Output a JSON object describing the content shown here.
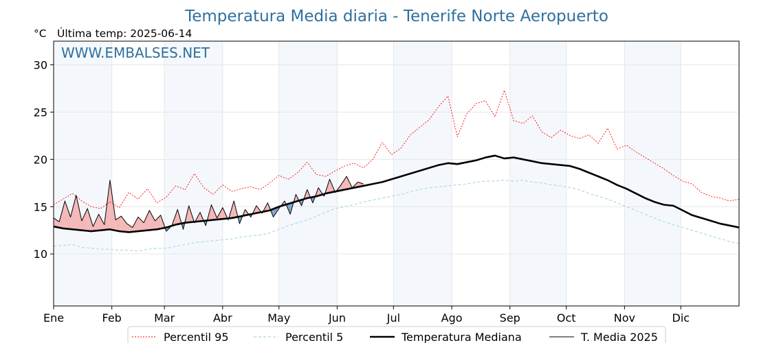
{
  "chart_data": {
    "type": "line",
    "title": "Temperatura Media diaria - Tenerife Norte Aeropuerto",
    "unit_label": "°C",
    "last_temp_label": "Última temp: 2025-06-14",
    "watermark": "WWW.EMBALSES.NET",
    "ylim": [
      4.5,
      32.5
    ],
    "yticks": [
      10,
      15,
      20,
      25,
      30
    ],
    "xlim": [
      0,
      365
    ],
    "x_unit": "day of year",
    "months": [
      {
        "label": "Ene",
        "start": 0
      },
      {
        "label": "Feb",
        "start": 31
      },
      {
        "label": "Mar",
        "start": 59
      },
      {
        "label": "Abr",
        "start": 90
      },
      {
        "label": "May",
        "start": 120
      },
      {
        "label": "Jun",
        "start": 151
      },
      {
        "label": "Jul",
        "start": 181
      },
      {
        "label": "Ago",
        "start": 212
      },
      {
        "label": "Sep",
        "start": 243
      },
      {
        "label": "Oct",
        "start": 273
      },
      {
        "label": "Nov",
        "start": 304
      },
      {
        "label": "Dic",
        "start": 334
      }
    ],
    "shaded_months": [
      "Ene",
      "Mar",
      "May",
      "Jul",
      "Sep",
      "Nov"
    ],
    "grid": true,
    "legend_position": "bottom-center",
    "colors": {
      "p95": "#ff0000",
      "p5": "#add8e6",
      "median": "#000000",
      "current": "#000000",
      "above_fill": "#f4b8b8",
      "below_fill": "#7fa6c9",
      "month_band": "#f4f8fc",
      "title": "#2e6f9e"
    },
    "series": [
      {
        "key": "p95",
        "name": "Percentil 95",
        "style": "dotted-red",
        "x": [
          0,
          5,
          10,
          15,
          20,
          25,
          30,
          35,
          40,
          45,
          50,
          55,
          60,
          65,
          70,
          75,
          80,
          85,
          90,
          95,
          100,
          105,
          110,
          115,
          120,
          125,
          130,
          135,
          140,
          145,
          150,
          155,
          160,
          165,
          170,
          175,
          180,
          185,
          190,
          195,
          200,
          205,
          210,
          215,
          220,
          225,
          230,
          235,
          240,
          245,
          250,
          255,
          260,
          265,
          270,
          275,
          280,
          285,
          290,
          295,
          300,
          305,
          310,
          315,
          320,
          325,
          330,
          335,
          340,
          345,
          350,
          355,
          360,
          365
        ],
        "values": [
          15.2,
          15.8,
          16.4,
          15.6,
          15.0,
          14.8,
          15.5,
          14.9,
          16.5,
          15.8,
          16.9,
          15.4,
          16.0,
          17.2,
          16.8,
          18.5,
          17.0,
          16.3,
          17.3,
          16.6,
          16.9,
          17.1,
          16.8,
          17.5,
          18.3,
          17.9,
          18.6,
          19.7,
          18.4,
          18.2,
          18.8,
          19.3,
          19.6,
          19.1,
          20.0,
          21.8,
          20.5,
          21.2,
          22.6,
          23.4,
          24.2,
          25.6,
          26.7,
          22.4,
          24.8,
          25.9,
          26.2,
          24.5,
          27.3,
          24.1,
          23.8,
          24.6,
          22.9,
          22.3,
          23.1,
          22.5,
          22.2,
          22.6,
          21.7,
          23.3,
          21.1,
          21.5,
          20.8,
          20.2,
          19.6,
          19.0,
          18.3,
          17.7,
          17.4,
          16.5,
          16.1,
          15.9,
          15.6,
          15.8
        ]
      },
      {
        "key": "p5",
        "name": "Percentil 5",
        "style": "dashed-lightblue",
        "x": [
          0,
          5,
          10,
          15,
          20,
          25,
          30,
          35,
          40,
          45,
          50,
          55,
          60,
          65,
          70,
          75,
          80,
          85,
          90,
          95,
          100,
          105,
          110,
          115,
          120,
          125,
          130,
          135,
          140,
          145,
          150,
          155,
          160,
          165,
          170,
          175,
          180,
          185,
          190,
          195,
          200,
          205,
          210,
          215,
          220,
          225,
          230,
          235,
          240,
          245,
          250,
          255,
          260,
          265,
          270,
          275,
          280,
          285,
          290,
          295,
          300,
          305,
          310,
          315,
          320,
          325,
          330,
          335,
          340,
          345,
          350,
          355,
          360,
          365
        ],
        "values": [
          10.8,
          10.9,
          11.0,
          10.7,
          10.6,
          10.5,
          10.5,
          10.4,
          10.4,
          10.3,
          10.5,
          10.6,
          10.6,
          10.8,
          11.0,
          11.2,
          11.3,
          11.4,
          11.5,
          11.6,
          11.8,
          11.9,
          12.0,
          12.2,
          12.6,
          13.0,
          13.3,
          13.6,
          14.0,
          14.4,
          14.8,
          15.0,
          15.2,
          15.5,
          15.7,
          15.9,
          16.1,
          16.3,
          16.6,
          16.8,
          17.0,
          17.1,
          17.2,
          17.3,
          17.4,
          17.6,
          17.7,
          17.7,
          17.8,
          17.7,
          17.8,
          17.6,
          17.5,
          17.3,
          17.2,
          17.0,
          16.8,
          16.4,
          16.1,
          15.8,
          15.4,
          15.0,
          14.6,
          14.2,
          13.8,
          13.4,
          13.1,
          12.8,
          12.5,
          12.2,
          11.9,
          11.6,
          11.3,
          11.1
        ]
      },
      {
        "key": "median",
        "name": "Temperatura Mediana",
        "style": "thick-black",
        "x": [
          0,
          5,
          10,
          15,
          20,
          25,
          30,
          35,
          40,
          45,
          50,
          55,
          60,
          65,
          70,
          75,
          80,
          85,
          90,
          95,
          100,
          105,
          110,
          115,
          120,
          125,
          130,
          135,
          140,
          145,
          150,
          155,
          160,
          165,
          170,
          175,
          180,
          185,
          190,
          195,
          200,
          205,
          210,
          215,
          220,
          225,
          230,
          235,
          240,
          245,
          250,
          255,
          260,
          265,
          270,
          275,
          280,
          285,
          290,
          295,
          300,
          305,
          310,
          315,
          320,
          325,
          330,
          335,
          340,
          345,
          350,
          355,
          360,
          365
        ],
        "values": [
          12.9,
          12.7,
          12.6,
          12.5,
          12.4,
          12.5,
          12.6,
          12.4,
          12.3,
          12.4,
          12.5,
          12.6,
          12.8,
          13.1,
          13.3,
          13.4,
          13.5,
          13.6,
          13.7,
          13.8,
          14.0,
          14.2,
          14.4,
          14.6,
          15.0,
          15.3,
          15.6,
          15.9,
          16.1,
          16.4,
          16.6,
          16.8,
          17.0,
          17.2,
          17.4,
          17.6,
          17.9,
          18.2,
          18.5,
          18.8,
          19.1,
          19.4,
          19.6,
          19.5,
          19.7,
          19.9,
          20.2,
          20.4,
          20.1,
          20.2,
          20.0,
          19.8,
          19.6,
          19.5,
          19.4,
          19.3,
          19.0,
          18.6,
          18.2,
          17.8,
          17.3,
          16.9,
          16.4,
          15.9,
          15.5,
          15.2,
          15.1,
          14.6,
          14.1,
          13.8,
          13.5,
          13.2,
          13.0,
          12.8
        ]
      },
      {
        "key": "current",
        "name": "T. Media 2025",
        "style": "thin-black",
        "x": [
          0,
          3,
          6,
          9,
          12,
          15,
          18,
          21,
          24,
          27,
          30,
          33,
          36,
          39,
          42,
          45,
          48,
          51,
          54,
          57,
          60,
          63,
          66,
          69,
          72,
          75,
          78,
          81,
          84,
          87,
          90,
          93,
          96,
          99,
          102,
          105,
          108,
          111,
          114,
          117,
          120,
          123,
          126,
          129,
          132,
          135,
          138,
          141,
          144,
          147,
          150,
          153,
          156,
          159,
          162,
          165
        ],
        "values": [
          13.8,
          13.4,
          15.6,
          13.9,
          16.2,
          13.5,
          14.8,
          12.9,
          14.2,
          13.1,
          17.8,
          13.6,
          14.0,
          13.2,
          12.8,
          13.9,
          13.3,
          14.6,
          13.5,
          14.1,
          12.4,
          13.0,
          14.7,
          12.6,
          15.1,
          13.3,
          14.4,
          13.0,
          15.2,
          13.8,
          14.9,
          13.6,
          15.6,
          13.2,
          14.7,
          13.9,
          15.1,
          14.3,
          15.4,
          13.9,
          14.8,
          15.6,
          14.2,
          16.3,
          15.1,
          16.8,
          15.4,
          17.0,
          16.1,
          17.9,
          16.5,
          17.3,
          18.2,
          17.0,
          17.6,
          17.4
        ]
      }
    ],
    "legend": [
      {
        "name": "Percentil 95",
        "style": "dotted-red"
      },
      {
        "name": "Percentil 5",
        "style": "dashed-lightblue"
      },
      {
        "name": "Temperatura Mediana",
        "style": "thick-black"
      },
      {
        "name": "T. Media 2025",
        "style": "thin-black"
      }
    ]
  }
}
